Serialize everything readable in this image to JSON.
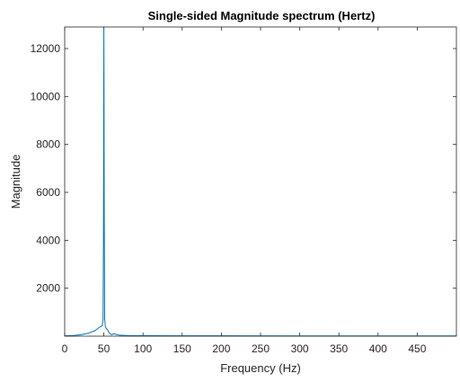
{
  "chart_data": {
    "type": "line",
    "title": "Single-sided Magnitude spectrum (Hertz)",
    "xlabel": "Frequency (Hz)",
    "ylabel": "Magnitude",
    "xlim": [
      0,
      500
    ],
    "ylim": [
      0,
      12900
    ],
    "xticks": [
      0,
      50,
      100,
      150,
      200,
      250,
      300,
      350,
      400,
      450
    ],
    "yticks": [
      2000,
      4000,
      6000,
      8000,
      10000,
      12000
    ],
    "grid": false,
    "legend": "none",
    "line_color": "#0072bd",
    "series": [
      {
        "x": [
          0,
          10,
          20,
          30,
          38,
          42,
          45,
          47,
          48,
          49,
          49.5,
          50,
          50.5,
          51,
          52,
          53,
          55,
          57,
          60,
          63,
          65,
          70,
          80,
          100,
          150,
          200,
          300,
          400,
          500
        ],
        "y": [
          15,
          25,
          55,
          120,
          220,
          310,
          380,
          420,
          450,
          700,
          4000,
          12900,
          5000,
          700,
          380,
          330,
          250,
          120,
          60,
          100,
          80,
          40,
          25,
          18,
          15,
          12,
          10,
          10,
          10
        ]
      }
    ]
  }
}
